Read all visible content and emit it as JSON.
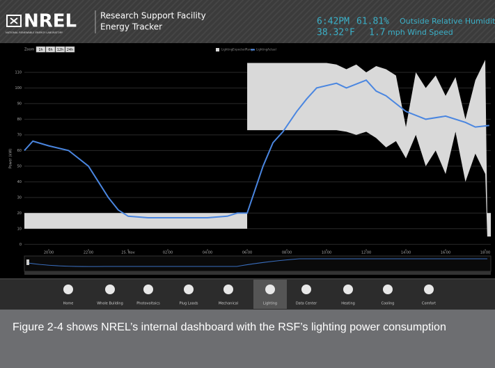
{
  "header": {
    "logo": "NREL",
    "logo_subtitle": "NATIONAL RENEWABLE ENERGY LABORATORY",
    "title_line1": "Research Support Facility",
    "title_line2": "Energy Tracker",
    "time": "6:42PM",
    "humidity_value": "61.81%",
    "humidity_label": "Outside Relative Humidity",
    "temperature": "38.32°F",
    "wind_value": "1.7",
    "wind_label": "mph Wind Speed"
  },
  "zoom": {
    "label": "Zoom",
    "buttons": [
      "1h",
      "6h",
      "12h",
      "24h"
    ]
  },
  "chart_data": {
    "type": "range-line",
    "y_label": "Power (kW)",
    "ylim": [
      -3,
      122
    ],
    "yticks": [
      0,
      10,
      20,
      30,
      40,
      50,
      60,
      70,
      80,
      90,
      100,
      110
    ],
    "xlim": [
      -1.23,
      22.28
    ],
    "xticks": [
      {
        "value": 0,
        "label": "20:00"
      },
      {
        "value": 2,
        "label": "22:00"
      },
      {
        "value": 4,
        "label": "25. Nov"
      },
      {
        "value": 6,
        "label": "02:00"
      },
      {
        "value": 8,
        "label": "04:00"
      },
      {
        "value": 10,
        "label": "06:00"
      },
      {
        "value": 12,
        "label": "08:00"
      },
      {
        "value": 14,
        "label": "10:00"
      },
      {
        "value": 16,
        "label": "12:00"
      },
      {
        "value": 18,
        "label": "14:00"
      },
      {
        "value": 20,
        "label": "16:00"
      },
      {
        "value": 22,
        "label": "18:00"
      }
    ],
    "grid": true,
    "series": [
      {
        "name": "LightingExpectedRange",
        "color": "#d9d9d9",
        "x": [
          -1.23,
          10,
          10,
          14,
          14.5,
          15,
          15.5,
          16,
          16.5,
          17,
          17.5,
          18,
          18.5,
          19,
          19.5,
          20,
          20.5,
          21,
          21.5,
          22,
          22.1,
          22.28
        ],
        "low": [
          10,
          10,
          73,
          73,
          73,
          72,
          70,
          72,
          68,
          62,
          66,
          55,
          70,
          50,
          60,
          45,
          72,
          40,
          58,
          45,
          5,
          5
        ],
        "high": [
          20,
          20,
          116,
          116,
          115,
          112,
          115,
          110,
          114,
          112,
          108,
          75,
          110,
          100,
          108,
          95,
          107,
          80,
          105,
          118,
          20,
          20
        ]
      },
      {
        "name": "LightingActual",
        "color": "#4a86e0",
        "x": [
          -1.23,
          -0.8,
          0,
          1,
          2,
          2.5,
          3,
          3.5,
          4,
          5,
          6,
          8,
          9,
          9.5,
          10,
          10.4,
          10.8,
          11.3,
          11.8,
          12.5,
          13,
          13.5,
          14.5,
          15,
          16,
          16.5,
          17,
          18,
          19,
          20,
          21,
          21.5,
          22.2
        ],
        "values": [
          60,
          66,
          63,
          60,
          50,
          40,
          30,
          22,
          18,
          17,
          17,
          17,
          18,
          20,
          20,
          35,
          50,
          65,
          72,
          85,
          93,
          100,
          103,
          100,
          105,
          98,
          95,
          85,
          80,
          82,
          78,
          75,
          76
        ]
      }
    ]
  },
  "nav": [
    "Home",
    "Whole Building",
    "Photovoltaics",
    "Plug Loads",
    "Mechanical",
    "Lighting",
    "Data Center",
    "Heating",
    "Cooling",
    "Comfort"
  ],
  "caption": "Figure 2-4 shows NREL’s internal dashboard with the RSF’s lighting power consumption"
}
